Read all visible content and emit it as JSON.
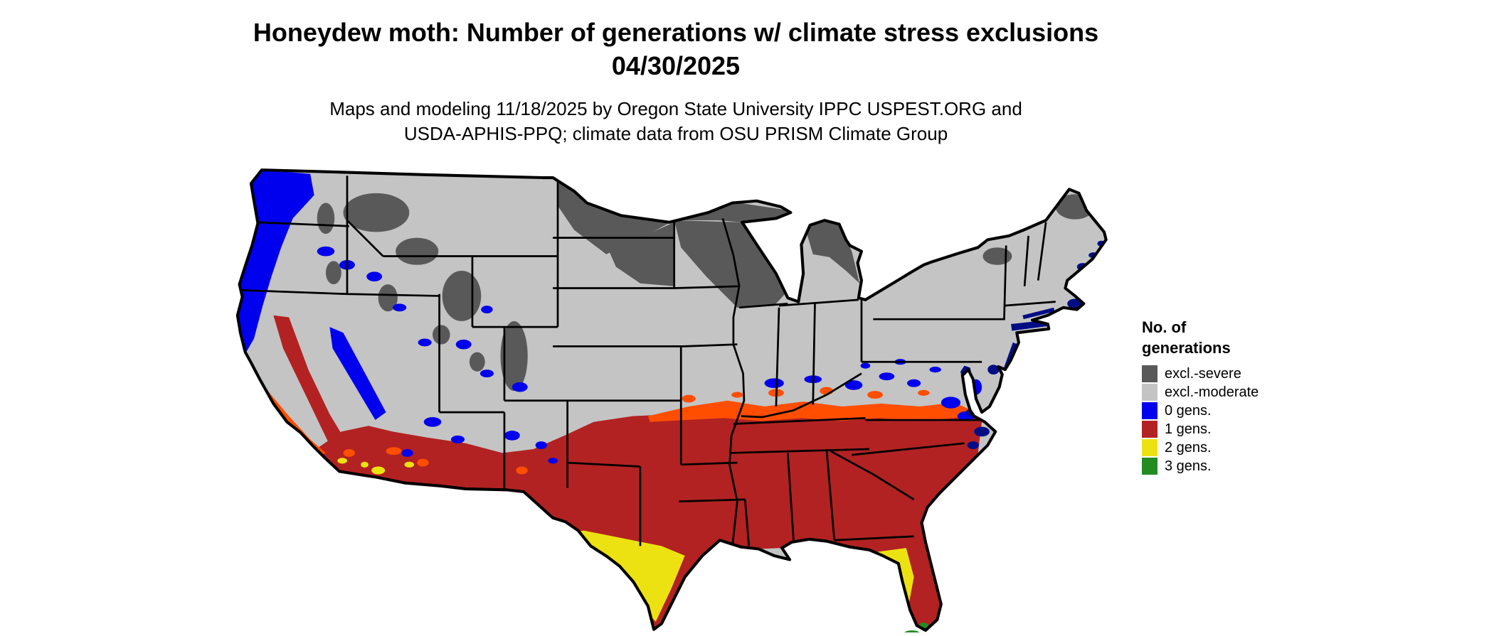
{
  "header": {
    "title_line1": "Honeydew moth: Number of generations w/ climate stress exclusions",
    "title_line2": "04/30/2025",
    "subtitle_line1": "Maps and modeling 11/18/2025 by Oregon State University IPPC USPEST.ORG and",
    "subtitle_line2": "USDA-APHIS-PPQ; climate data from OSU PRISM Climate Group"
  },
  "legend": {
    "title_line1": "No. of",
    "title_line2": "generations",
    "items": [
      {
        "label": "excl.-severe",
        "color": "#595959"
      },
      {
        "label": "excl.-moderate",
        "color": "#C4C4C4"
      },
      {
        "label": "0 gens.",
        "color": "#0000EE"
      },
      {
        "label": "1 gens.",
        "color": "#B22222"
      },
      {
        "label": "2 gens.",
        "color": "#EDE211"
      },
      {
        "label": "3 gens.",
        "color": "#228B22"
      }
    ]
  },
  "colors": {
    "severe": "#595959",
    "moderate": "#C4C4C4",
    "gens0": "#0000EE",
    "gens1": "#B22222",
    "gens2": "#EDE211",
    "gens3": "#228B22",
    "transition_band": "#FF4E00",
    "coastal_navy": "#000D85",
    "outline": "#000000"
  },
  "map": {
    "description": "Choropleth map of the contiguous United States showing modeled honeydew moth generations with climate stress exclusions: severe exclusion across the northern tier, moderate exclusion through the central states, 0 generations along the Pacific coast and mountain areas, 1 generation across the South, 2 generations in south Texas and central Florida, 3 generations at the southern tip of Florida"
  }
}
